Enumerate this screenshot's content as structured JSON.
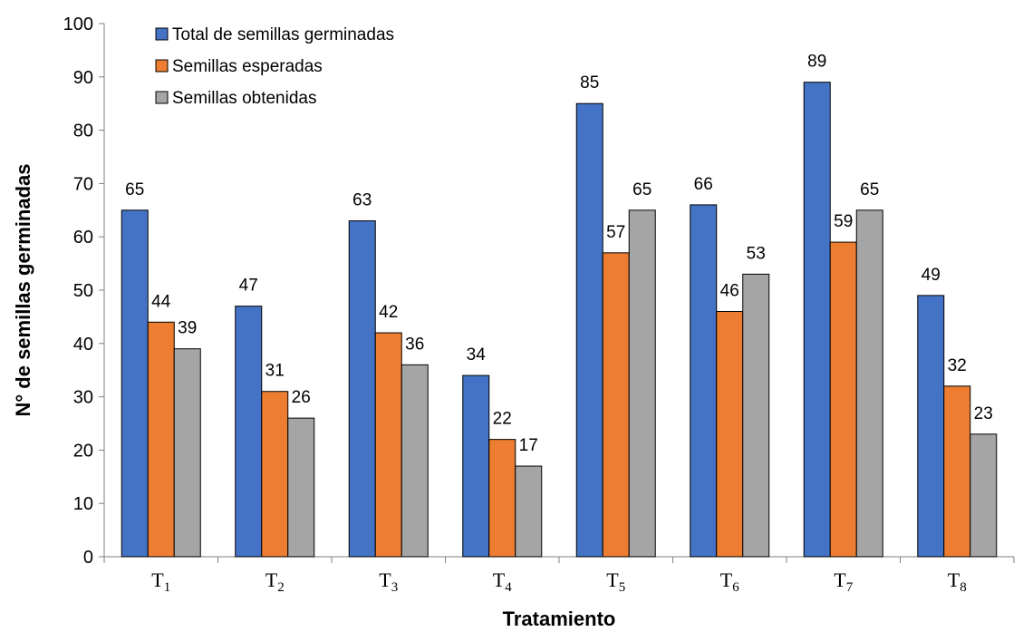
{
  "chart_data": {
    "type": "bar",
    "xlabel": "Tratamiento",
    "ylabel": "N° de semillas germinadas",
    "ylim": [
      0,
      100
    ],
    "yticks": [
      0,
      10,
      20,
      30,
      40,
      50,
      60,
      70,
      80,
      90,
      100
    ],
    "categories": [
      {
        "base": "T",
        "sub": "1"
      },
      {
        "base": "T",
        "sub": "2"
      },
      {
        "base": "T",
        "sub": "3"
      },
      {
        "base": "T",
        "sub": "4"
      },
      {
        "base": "T",
        "sub": "5"
      },
      {
        "base": "T",
        "sub": "6"
      },
      {
        "base": "T",
        "sub": "7"
      },
      {
        "base": "T",
        "sub": "8"
      }
    ],
    "series": [
      {
        "name": "Total de semillas germinadas",
        "color": "#4472c4",
        "values": [
          65,
          47,
          63,
          34,
          85,
          66,
          89,
          49
        ]
      },
      {
        "name": "Semillas esperadas",
        "color": "#ed7d31",
        "values": [
          44,
          31,
          42,
          22,
          57,
          46,
          59,
          32
        ]
      },
      {
        "name": "Semillas obtenidas",
        "color": "#a5a5a5",
        "values": [
          39,
          26,
          36,
          17,
          65,
          53,
          65,
          23
        ]
      }
    ],
    "legend_position": "top-left",
    "grid": false
  }
}
